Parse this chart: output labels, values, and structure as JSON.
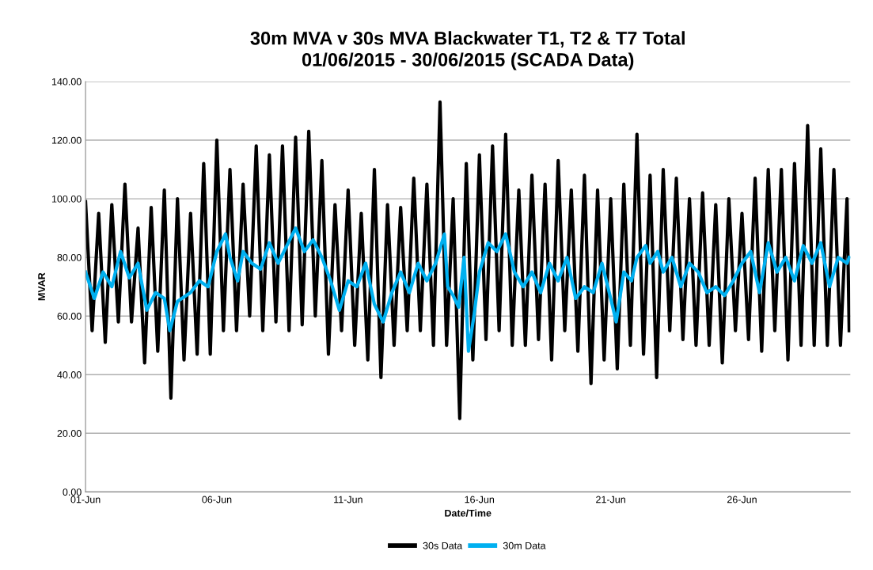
{
  "chart_data": {
    "type": "line",
    "title": "30m MVA v 30s MVA Blackwater T1, T2 & T7 Total\n01/06/2015 - 30/06/2015 (SCADA Data)",
    "xlabel": "Date/Time",
    "ylabel": "MVAR",
    "xlim": [
      "2015-06-01",
      "2015-06-30T03:00"
    ],
    "xticks": [
      {
        "value": "2015-06-01",
        "label": "01-Jun"
      },
      {
        "value": "2015-06-06",
        "label": "06-Jun"
      },
      {
        "value": "2015-06-11",
        "label": "11-Jun"
      },
      {
        "value": "2015-06-16",
        "label": "16-Jun"
      },
      {
        "value": "2015-06-21",
        "label": "21-Jun"
      },
      {
        "value": "2015-06-26",
        "label": "26-Jun"
      }
    ],
    "ylim": [
      0,
      140
    ],
    "yticks": [
      {
        "value": 0,
        "label": "0.00"
      },
      {
        "value": 20,
        "label": "20.00"
      },
      {
        "value": 40,
        "label": "40.00"
      },
      {
        "value": 60,
        "label": "60.00"
      },
      {
        "value": 80,
        "label": "80.00"
      },
      {
        "value": 100,
        "label": "100.00"
      },
      {
        "value": 120,
        "label": "120.00"
      },
      {
        "value": 140,
        "label": "140.00"
      }
    ],
    "grid": "y",
    "legend": "bottom",
    "series": [
      {
        "name": "30s Data",
        "color": "#000000",
        "x": [
          "2015-06-01T00:00",
          "2015-06-01T06:00",
          "2015-06-01T12:00",
          "2015-06-01T18:00",
          "2015-06-02T00:00",
          "2015-06-02T06:00",
          "2015-06-02T12:00",
          "2015-06-02T18:00",
          "2015-06-03T00:00",
          "2015-06-03T06:00",
          "2015-06-03T12:00",
          "2015-06-03T18:00",
          "2015-06-04T00:00",
          "2015-06-04T06:00",
          "2015-06-04T12:00",
          "2015-06-04T18:00",
          "2015-06-05T00:00",
          "2015-06-05T06:00",
          "2015-06-05T12:00",
          "2015-06-05T18:00",
          "2015-06-06T00:00",
          "2015-06-06T06:00",
          "2015-06-06T12:00",
          "2015-06-06T18:00",
          "2015-06-07T00:00",
          "2015-06-07T06:00",
          "2015-06-07T12:00",
          "2015-06-07T18:00",
          "2015-06-08T00:00",
          "2015-06-08T06:00",
          "2015-06-08T12:00",
          "2015-06-08T18:00",
          "2015-06-09T00:00",
          "2015-06-09T06:00",
          "2015-06-09T12:00",
          "2015-06-09T18:00",
          "2015-06-10T00:00",
          "2015-06-10T06:00",
          "2015-06-10T12:00",
          "2015-06-10T18:00",
          "2015-06-11T00:00",
          "2015-06-11T06:00",
          "2015-06-11T12:00",
          "2015-06-11T18:00",
          "2015-06-12T00:00",
          "2015-06-12T06:00",
          "2015-06-12T12:00",
          "2015-06-12T18:00",
          "2015-06-13T00:00",
          "2015-06-13T06:00",
          "2015-06-13T12:00",
          "2015-06-13T18:00",
          "2015-06-14T00:00",
          "2015-06-14T06:00",
          "2015-06-14T12:00",
          "2015-06-14T18:00",
          "2015-06-15T00:00",
          "2015-06-15T06:00",
          "2015-06-15T12:00",
          "2015-06-15T18:00",
          "2015-06-16T00:00",
          "2015-06-16T06:00",
          "2015-06-16T12:00",
          "2015-06-16T18:00",
          "2015-06-17T00:00",
          "2015-06-17T06:00",
          "2015-06-17T12:00",
          "2015-06-17T18:00",
          "2015-06-18T00:00",
          "2015-06-18T06:00",
          "2015-06-18T12:00",
          "2015-06-18T18:00",
          "2015-06-19T00:00",
          "2015-06-19T06:00",
          "2015-06-19T12:00",
          "2015-06-19T18:00",
          "2015-06-20T00:00",
          "2015-06-20T06:00",
          "2015-06-20T12:00",
          "2015-06-20T18:00",
          "2015-06-21T00:00",
          "2015-06-21T06:00",
          "2015-06-21T12:00",
          "2015-06-21T18:00",
          "2015-06-22T00:00",
          "2015-06-22T06:00",
          "2015-06-22T12:00",
          "2015-06-22T18:00",
          "2015-06-23T00:00",
          "2015-06-23T06:00",
          "2015-06-23T12:00",
          "2015-06-23T18:00",
          "2015-06-24T00:00",
          "2015-06-24T06:00",
          "2015-06-24T12:00",
          "2015-06-24T18:00",
          "2015-06-25T00:00",
          "2015-06-25T06:00",
          "2015-06-25T12:00",
          "2015-06-25T18:00",
          "2015-06-26T00:00",
          "2015-06-26T06:00",
          "2015-06-26T12:00",
          "2015-06-26T18:00",
          "2015-06-27T00:00",
          "2015-06-27T06:00",
          "2015-06-27T12:00",
          "2015-06-27T18:00",
          "2015-06-28T00:00",
          "2015-06-28T06:00",
          "2015-06-28T12:00",
          "2015-06-28T18:00",
          "2015-06-29T00:00",
          "2015-06-29T06:00",
          "2015-06-29T12:00",
          "2015-06-29T18:00",
          "2015-06-30T00:00",
          "2015-06-30T02:00"
        ],
        "values": [
          99,
          55,
          95,
          51,
          98,
          58,
          105,
          58,
          90,
          44,
          97,
          48,
          103,
          32,
          100,
          45,
          95,
          47,
          112,
          47,
          120,
          55,
          110,
          55,
          105,
          60,
          118,
          55,
          115,
          58,
          118,
          55,
          121,
          57,
          123,
          60,
          113,
          47,
          98,
          55,
          103,
          50,
          95,
          45,
          110,
          39,
          98,
          50,
          97,
          55,
          107,
          55,
          105,
          50,
          133,
          50,
          100,
          25,
          112,
          45,
          115,
          52,
          118,
          55,
          122,
          50,
          103,
          50,
          108,
          52,
          105,
          45,
          113,
          55,
          103,
          48,
          108,
          37,
          103,
          45,
          100,
          42,
          105,
          50,
          122,
          47,
          108,
          39,
          110,
          55,
          107,
          52,
          100,
          50,
          102,
          50,
          98,
          44,
          100,
          55,
          95,
          52,
          107,
          48,
          110,
          55,
          110,
          45,
          112,
          50,
          125,
          50,
          117,
          50,
          110,
          50,
          100,
          55
        ]
      },
      {
        "name": "30m Data",
        "color": "#00b0f0",
        "x": [
          "2015-06-01T00:00",
          "2015-06-01T08:00",
          "2015-06-01T16:00",
          "2015-06-02T00:00",
          "2015-06-02T08:00",
          "2015-06-02T16:00",
          "2015-06-03T00:00",
          "2015-06-03T08:00",
          "2015-06-03T16:00",
          "2015-06-04T00:00",
          "2015-06-04T05:00",
          "2015-06-04T12:00",
          "2015-06-05T00:00",
          "2015-06-05T08:00",
          "2015-06-05T16:00",
          "2015-06-06T00:00",
          "2015-06-06T08:00",
          "2015-06-06T12:00",
          "2015-06-06T19:00",
          "2015-06-07T00:00",
          "2015-06-07T08:00",
          "2015-06-07T16:00",
          "2015-06-08T00:00",
          "2015-06-08T08:00",
          "2015-06-08T16:00",
          "2015-06-09T00:00",
          "2015-06-09T08:00",
          "2015-06-09T16:00",
          "2015-06-10T00:00",
          "2015-06-10T08:00",
          "2015-06-10T16:00",
          "2015-06-11T00:00",
          "2015-06-11T08:00",
          "2015-06-11T16:00",
          "2015-06-12T00:00",
          "2015-06-12T08:00",
          "2015-06-12T16:00",
          "2015-06-13T00:00",
          "2015-06-13T08:00",
          "2015-06-13T16:00",
          "2015-06-14T00:00",
          "2015-06-14T08:00",
          "2015-06-14T16:00",
          "2015-06-14T19:00",
          "2015-06-15T00:00",
          "2015-06-15T05:00",
          "2015-06-15T10:00",
          "2015-06-15T14:00",
          "2015-06-15T19:00",
          "2015-06-16T00:00",
          "2015-06-16T08:00",
          "2015-06-16T16:00",
          "2015-06-17T00:00",
          "2015-06-17T08:00",
          "2015-06-17T16:00",
          "2015-06-18T00:00",
          "2015-06-18T08:00",
          "2015-06-18T16:00",
          "2015-06-19T00:00",
          "2015-06-19T08:00",
          "2015-06-19T16:00",
          "2015-06-20T00:00",
          "2015-06-20T08:00",
          "2015-06-20T16:00",
          "2015-06-21T00:00",
          "2015-06-21T05:00",
          "2015-06-21T12:00",
          "2015-06-21T19:00",
          "2015-06-22T00:00",
          "2015-06-22T08:00",
          "2015-06-22T12:00",
          "2015-06-22T19:00",
          "2015-06-23T00:00",
          "2015-06-23T08:00",
          "2015-06-23T16:00",
          "2015-06-24T00:00",
          "2015-06-24T08:00",
          "2015-06-24T16:00",
          "2015-06-25T00:00",
          "2015-06-25T08:00",
          "2015-06-25T16:00",
          "2015-06-26T00:00",
          "2015-06-26T08:00",
          "2015-06-26T16:00",
          "2015-06-27T00:00",
          "2015-06-27T08:00",
          "2015-06-27T16:00",
          "2015-06-28T00:00",
          "2015-06-28T08:00",
          "2015-06-28T16:00",
          "2015-06-29T00:00",
          "2015-06-29T08:00",
          "2015-06-29T16:00",
          "2015-06-30T00:00",
          "2015-06-30T02:00"
        ],
        "values": [
          75,
          66,
          75,
          70,
          82,
          73,
          78,
          62,
          68,
          66,
          55,
          65,
          68,
          72,
          70,
          82,
          88,
          80,
          72,
          82,
          78,
          76,
          85,
          78,
          84,
          90,
          82,
          86,
          80,
          72,
          62,
          72,
          70,
          78,
          64,
          58,
          68,
          75,
          68,
          78,
          72,
          78,
          88,
          70,
          67,
          63,
          80,
          48,
          60,
          75,
          85,
          82,
          88,
          75,
          70,
          75,
          68,
          78,
          72,
          80,
          66,
          70,
          68,
          78,
          66,
          58,
          75,
          72,
          80,
          84,
          78,
          82,
          75,
          80,
          70,
          78,
          75,
          68,
          70,
          67,
          72,
          78,
          82,
          68,
          85,
          75,
          80,
          72,
          84,
          78,
          85,
          70,
          80,
          78,
          80
        ]
      }
    ]
  }
}
